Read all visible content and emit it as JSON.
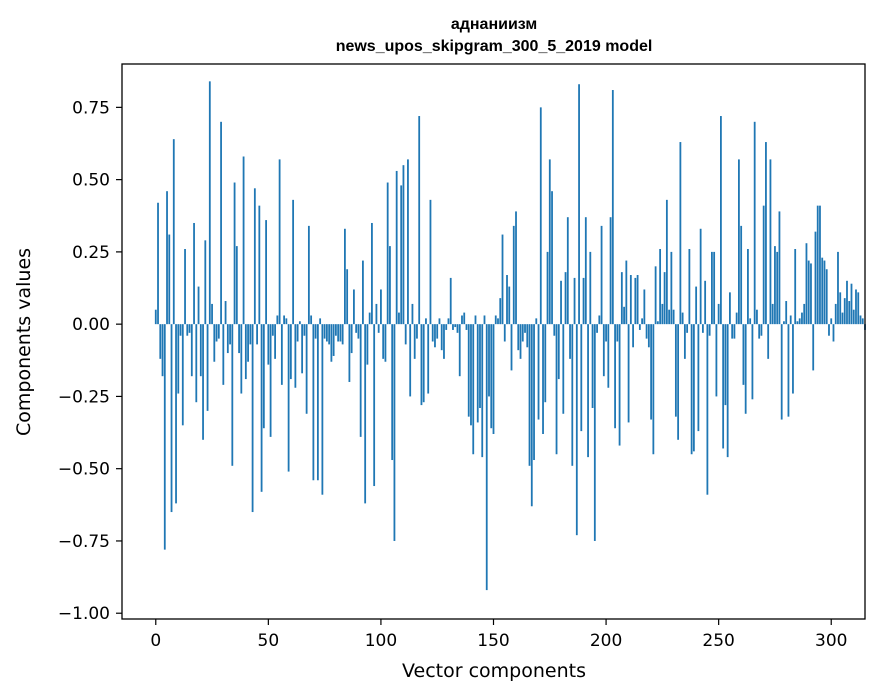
{
  "chart_data": {
    "type": "bar",
    "title": "аднаниизм",
    "subtitle": "news_upos_skipgram_300_5_2019 model",
    "xlabel": "Vector components",
    "ylabel": "Components values",
    "xlim": [
      -15,
      315
    ],
    "ylim": [
      -1.02,
      0.9
    ],
    "xticks": [
      0,
      50,
      100,
      150,
      200,
      250,
      300
    ],
    "xtick_labels": [
      "0",
      "50",
      "100",
      "150",
      "200",
      "250",
      "300"
    ],
    "yticks": [
      -1.0,
      -0.75,
      -0.5,
      -0.25,
      0.0,
      0.25,
      0.5,
      0.75
    ],
    "ytick_labels": [
      "−1.00",
      "−0.75",
      "−0.50",
      "−0.25",
      "0.00",
      "0.25",
      "0.50",
      "0.75"
    ],
    "bar_color": "#1f77b4",
    "grid": false,
    "values": [
      0.05,
      0.42,
      -0.12,
      -0.18,
      -0.78,
      0.46,
      0.31,
      -0.65,
      0.64,
      -0.62,
      -0.24,
      -0.04,
      -0.35,
      0.26,
      -0.04,
      -0.03,
      -0.18,
      0.35,
      -0.27,
      0.13,
      -0.18,
      -0.4,
      0.29,
      -0.3,
      0.84,
      0.07,
      -0.13,
      -0.06,
      -0.05,
      0.7,
      -0.21,
      0.08,
      -0.1,
      -0.07,
      -0.49,
      0.49,
      0.27,
      -0.1,
      -0.24,
      0.58,
      -0.19,
      -0.13,
      -0.07,
      -0.65,
      0.47,
      -0.07,
      0.41,
      -0.58,
      -0.36,
      0.36,
      -0.14,
      -0.39,
      -0.04,
      -0.12,
      0.03,
      0.57,
      -0.21,
      0.03,
      0.02,
      -0.51,
      -0.19,
      0.43,
      -0.22,
      -0.06,
      0.01,
      -0.17,
      -0.04,
      -0.31,
      0.34,
      0.03,
      -0.54,
      -0.05,
      -0.54,
      0.02,
      -0.59,
      -0.05,
      -0.06,
      -0.07,
      -0.13,
      -0.11,
      -0.04,
      -0.06,
      -0.06,
      -0.07,
      0.33,
      0.19,
      -0.2,
      -0.1,
      0.12,
      -0.03,
      -0.05,
      -0.39,
      0.22,
      -0.62,
      -0.14,
      0.04,
      0.35,
      -0.56,
      0.07,
      -0.03,
      0.12,
      -0.12,
      -0.13,
      0.49,
      0.27,
      -0.47,
      -0.75,
      0.53,
      0.04,
      0.48,
      0.55,
      -0.07,
      0.57,
      -0.25,
      0.07,
      -0.12,
      -0.05,
      0.72,
      -0.28,
      -0.27,
      0.02,
      -0.24,
      0.43,
      -0.06,
      -0.08,
      -0.05,
      0.02,
      -0.09,
      -0.12,
      -0.02,
      0.02,
      0.16,
      -0.02,
      -0.01,
      -0.03,
      -0.18,
      0.03,
      0.04,
      -0.02,
      -0.32,
      -0.35,
      -0.45,
      0.03,
      -0.34,
      -0.29,
      -0.46,
      0.03,
      -0.92,
      -0.25,
      -0.36,
      -0.38,
      0.03,
      0.02,
      0.09,
      0.31,
      -0.06,
      0.17,
      0.13,
      -0.16,
      0.34,
      0.39,
      -0.09,
      -0.12,
      -0.06,
      -0.03,
      -0.08,
      -0.49,
      -0.63,
      -0.47,
      0.02,
      -0.33,
      0.75,
      -0.38,
      -0.27,
      0.25,
      0.57,
      0.46,
      -0.04,
      -0.45,
      -0.19,
      0.15,
      -0.31,
      0.18,
      0.37,
      -0.12,
      -0.49,
      0.16,
      -0.73,
      0.83,
      -0.37,
      0.16,
      0.37,
      -0.46,
      0.25,
      -0.29,
      -0.75,
      -0.03,
      0.03,
      0.34,
      -0.18,
      -0.06,
      -0.22,
      0.37,
      0.81,
      -0.36,
      -0.06,
      -0.42,
      0.18,
      0.06,
      0.22,
      -0.34,
      0.17,
      -0.08,
      0.16,
      0.17,
      -0.02,
      0.02,
      0.12,
      -0.05,
      -0.08,
      -0.33,
      -0.45,
      0.2,
      0.01,
      0.26,
      0.07,
      0.18,
      0.43,
      0.05,
      0.25,
      0.05,
      -0.32,
      -0.4,
      0.63,
      0.04,
      -0.12,
      -0.03,
      0.26,
      -0.45,
      -0.44,
      0.13,
      -0.37,
      0.33,
      -0.03,
      0.15,
      -0.59,
      -0.04,
      0.25,
      0.25,
      -0.25,
      0.07,
      0.72,
      -0.43,
      -0.28,
      -0.46,
      0.11,
      -0.05,
      -0.05,
      0.04,
      0.57,
      0.34,
      -0.21,
      -0.31,
      0.26,
      0.02,
      -0.26,
      0.7,
      0.05,
      -0.05,
      -0.04,
      0.41,
      0.63,
      -0.12,
      0.57,
      0.07,
      0.27,
      0.25,
      0.39,
      -0.33,
      0.01,
      0.08,
      -0.32,
      0.03,
      -0.24,
      0.26,
      0.01,
      0.02,
      0.04,
      0.07,
      0.28,
      0.22,
      0.21,
      -0.16,
      0.32,
      0.41,
      0.41,
      0.23,
      0.22,
      0.19,
      -0.04,
      0.02,
      -0.06,
      0.07,
      0.25,
      0.11,
      0.04,
      0.09,
      0.15,
      0.08,
      0.14,
      0.05,
      0.12,
      0.11,
      0.03,
      0.02,
      -0.02,
      0.0
    ]
  }
}
